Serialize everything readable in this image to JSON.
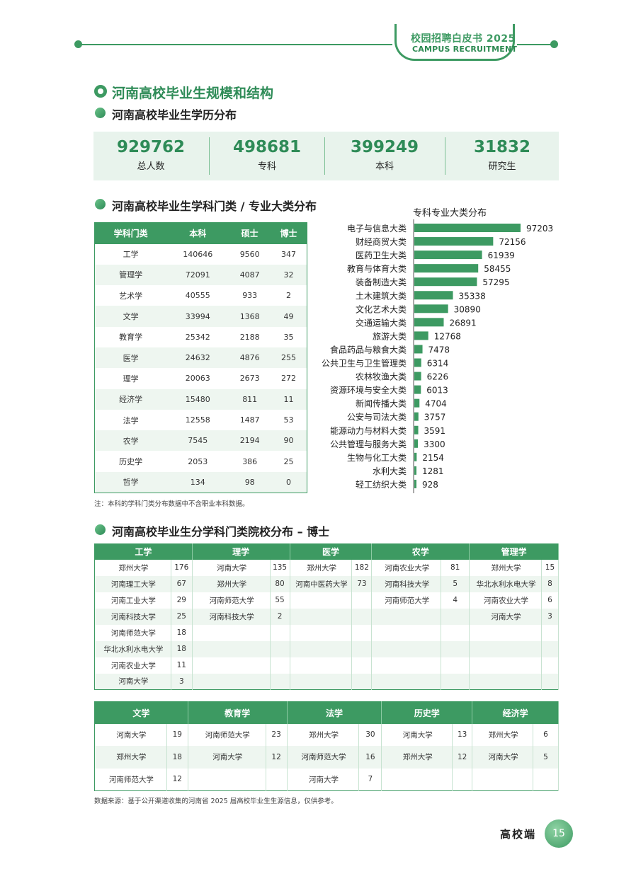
{
  "header": {
    "badge_title": "校园招聘白皮书 2025",
    "badge_subtitle": "CAMPUS RECRUITMENT"
  },
  "section_title": "河南高校毕业生规模和结构",
  "education": {
    "title": "河南高校毕业生学历分布",
    "stats": [
      {
        "value": "929762",
        "label": "总人数"
      },
      {
        "value": "498681",
        "label": "专科"
      },
      {
        "value": "399249",
        "label": "本科"
      },
      {
        "value": "31832",
        "label": "研究生"
      }
    ]
  },
  "discipline": {
    "title": "河南高校毕业生学科门类 / 专业大类分布",
    "columns": [
      "学科门类",
      "本科",
      "硕士",
      "博士"
    ],
    "rows": [
      [
        "工学",
        "140646",
        "9560",
        "347"
      ],
      [
        "管理学",
        "72091",
        "4087",
        "32"
      ],
      [
        "艺术学",
        "40555",
        "933",
        "2"
      ],
      [
        "文学",
        "33994",
        "1368",
        "49"
      ],
      [
        "教育学",
        "25342",
        "2188",
        "35"
      ],
      [
        "医学",
        "24632",
        "4876",
        "255"
      ],
      [
        "理学",
        "20063",
        "2673",
        "272"
      ],
      [
        "经济学",
        "15480",
        "811",
        "11"
      ],
      [
        "法学",
        "12558",
        "1487",
        "53"
      ],
      [
        "农学",
        "7545",
        "2194",
        "90"
      ],
      [
        "历史学",
        "2053",
        "386",
        "25"
      ],
      [
        "哲学",
        "134",
        "98",
        "0"
      ]
    ],
    "note": "注：本科的学科门类分布数据中不含职业本科数据。"
  },
  "chart_data": {
    "type": "bar",
    "orientation": "horizontal",
    "title": "专科专业大类分布",
    "bar_color": "#3d9a62",
    "categories": [
      "电子与信息大类",
      "财经商贸大类",
      "医药卫生大类",
      "教育与体育大类",
      "装备制造大类",
      "土木建筑大类",
      "文化艺术大类",
      "交通运输大类",
      "旅游大类",
      "食品药品与粮食大类",
      "公共卫生与卫生管理类",
      "农林牧渔大类",
      "资源环境与安全大类",
      "新闻传播大类",
      "公安与司法大类",
      "能源动力与材料大类",
      "公共管理与服务大类",
      "生物与化工大类",
      "水利大类",
      "轻工纺织大类"
    ],
    "values": [
      97203,
      72156,
      61939,
      58455,
      57295,
      35338,
      30890,
      26891,
      12768,
      7478,
      6314,
      6226,
      6013,
      4704,
      3757,
      3591,
      3300,
      2154,
      1281,
      928
    ]
  },
  "phd": {
    "title": "河南高校毕业生分学科门类院校分布 – 博士",
    "groups1": [
      {
        "name": "工学",
        "rows": [
          [
            "郑州大学",
            "176"
          ],
          [
            "河南理工大学",
            "67"
          ],
          [
            "河南工业大学",
            "29"
          ],
          [
            "河南科技大学",
            "25"
          ],
          [
            "河南师范大学",
            "18"
          ],
          [
            "华北水利水电大学",
            "18"
          ],
          [
            "河南农业大学",
            "11"
          ],
          [
            "河南大学",
            "3"
          ]
        ]
      },
      {
        "name": "理学",
        "rows": [
          [
            "河南大学",
            "135"
          ],
          [
            "郑州大学",
            "80"
          ],
          [
            "河南师范大学",
            "55"
          ],
          [
            "河南科技大学",
            "2"
          ]
        ]
      },
      {
        "name": "医学",
        "rows": [
          [
            "郑州大学",
            "182"
          ],
          [
            "河南中医药大学",
            "73"
          ]
        ]
      },
      {
        "name": "农学",
        "rows": [
          [
            "河南农业大学",
            "81"
          ],
          [
            "河南科技大学",
            "5"
          ],
          [
            "河南师范大学",
            "4"
          ]
        ]
      },
      {
        "name": "管理学",
        "rows": [
          [
            "郑州大学",
            "15"
          ],
          [
            "华北水利水电大学",
            "8"
          ],
          [
            "河南农业大学",
            "6"
          ],
          [
            "河南大学",
            "3"
          ]
        ]
      }
    ],
    "groups2": [
      {
        "name": "文学",
        "rows": [
          [
            "河南大学",
            "19"
          ],
          [
            "郑州大学",
            "18"
          ],
          [
            "河南师范大学",
            "12"
          ]
        ]
      },
      {
        "name": "教育学",
        "rows": [
          [
            "河南师范大学",
            "23"
          ],
          [
            "河南大学",
            "12"
          ]
        ]
      },
      {
        "name": "法学",
        "rows": [
          [
            "郑州大学",
            "30"
          ],
          [
            "河南师范大学",
            "16"
          ],
          [
            "河南大学",
            "7"
          ]
        ]
      },
      {
        "name": "历史学",
        "rows": [
          [
            "河南大学",
            "13"
          ],
          [
            "郑州大学",
            "12"
          ]
        ]
      },
      {
        "name": "经济学",
        "rows": [
          [
            "郑州大学",
            "6"
          ],
          [
            "河南大学",
            "5"
          ]
        ]
      }
    ],
    "source": "数据来源：基于公开渠道收集的河南省 2025 届高校毕业生生源信息，仅供参考。"
  },
  "footer": {
    "label": "高校端",
    "page": "15"
  }
}
